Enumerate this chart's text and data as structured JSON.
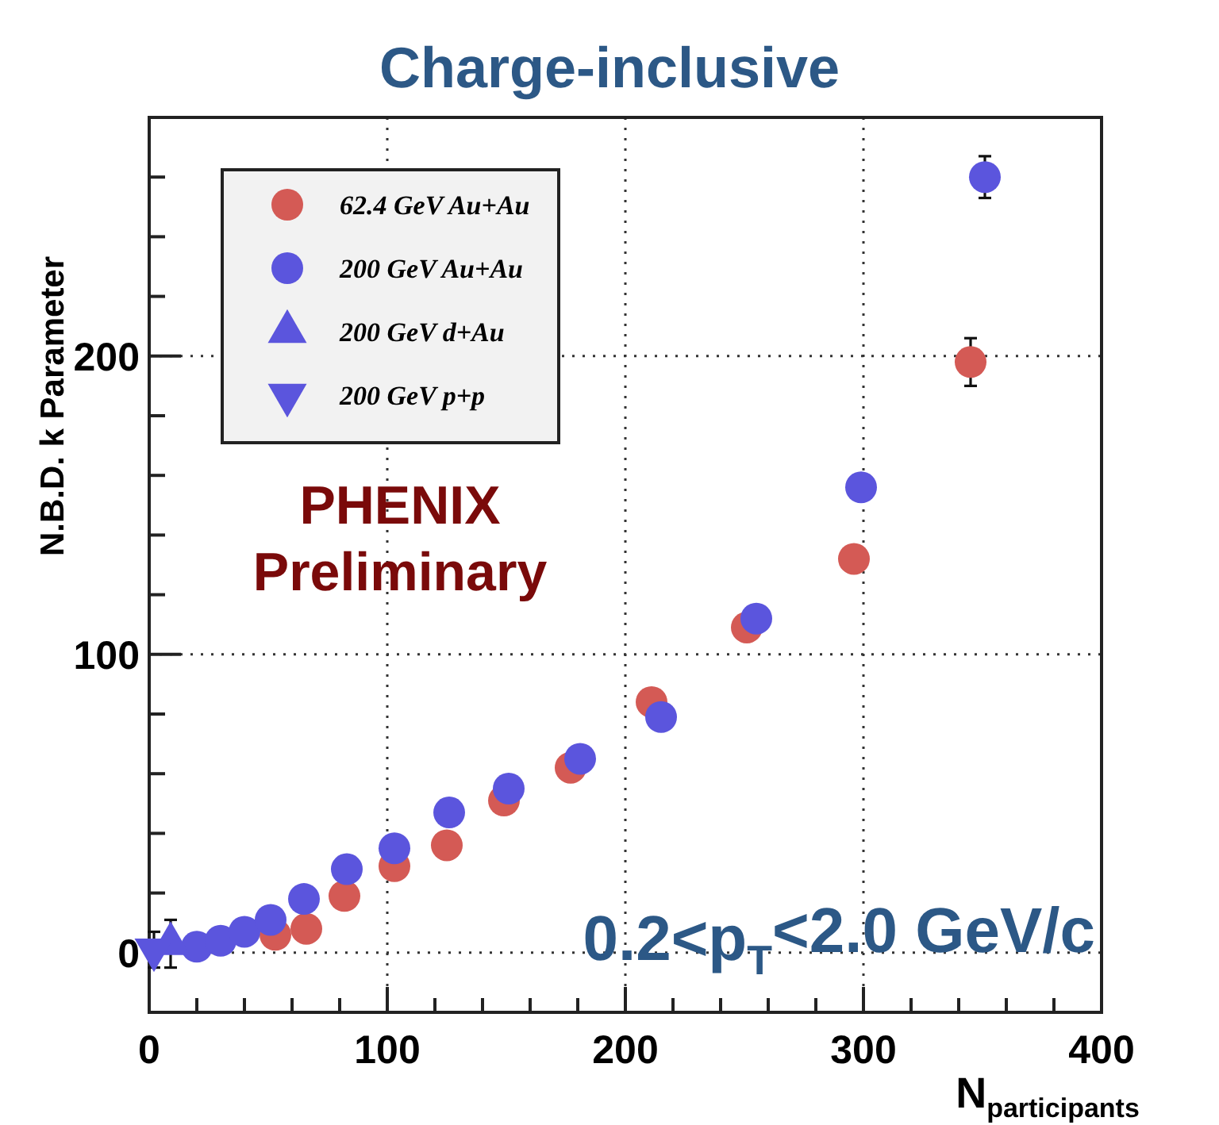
{
  "chart_data": {
    "type": "scatter",
    "title": "Charge-inclusive",
    "xlabel": "N$_{participants}$",
    "ylabel": "N.B.D. k Parameter",
    "xlim": [
      0,
      400
    ],
    "ylim": [
      -20,
      280
    ],
    "xticks": [
      0,
      {
        "value": 20,
        "label": null
      },
      {
        "value": 40,
        "label": null
      },
      {
        "value": 60,
        "label": null
      },
      {
        "value": 80,
        "label": null
      },
      100,
      {
        "value": 120,
        "label": null
      },
      {
        "value": 140,
        "label": null
      },
      {
        "value": 160,
        "label": null
      },
      {
        "value": 180,
        "label": null
      },
      200,
      {
        "value": 220,
        "label": null
      },
      {
        "value": 240,
        "label": null
      },
      {
        "value": 260,
        "label": null
      },
      {
        "value": 280,
        "label": null
      },
      300,
      {
        "value": 320,
        "label": null
      },
      {
        "value": 340,
        "label": null
      },
      {
        "value": 360,
        "label": null
      },
      {
        "value": 380,
        "label": null
      },
      400
    ],
    "yticks": [
      0,
      {
        "value": 20,
        "label": null
      },
      {
        "value": 40,
        "label": null
      },
      {
        "value": 60,
        "label": null
      },
      {
        "value": 80,
        "label": null
      },
      100,
      {
        "value": 120,
        "label": null
      },
      {
        "value": 140,
        "label": null
      },
      {
        "value": 160,
        "label": null
      },
      {
        "value": 180,
        "label": null
      },
      200,
      {
        "value": 220,
        "label": null
      },
      {
        "value": 240,
        "label": null
      },
      {
        "value": 260,
        "label": null
      }
    ],
    "grid": true,
    "legend": "top left",
    "series": [
      {
        "name": "62.4 GeV Au+Au",
        "color": "#d45a55",
        "marker": "circle",
        "x": [
          53,
          66,
          82,
          103,
          125,
          149,
          177,
          211,
          251,
          296,
          345
        ],
        "values": [
          6,
          8,
          19,
          29,
          36,
          51,
          62,
          84,
          109,
          132,
          198
        ],
        "errors": [
          null,
          null,
          null,
          null,
          null,
          null,
          null,
          null,
          null,
          null,
          8
        ]
      },
      {
        "name": "200 GeV Au+Au",
        "color": "#5b55dd",
        "marker": "circle",
        "x": [
          20,
          30,
          40,
          51,
          65,
          83,
          103,
          126,
          151,
          181,
          215,
          255,
          299,
          351
        ],
        "values": [
          2,
          4,
          7,
          11,
          18,
          28,
          35,
          47,
          55,
          65,
          79,
          112,
          156,
          260
        ],
        "errors": [
          null,
          null,
          null,
          null,
          null,
          null,
          null,
          null,
          null,
          null,
          null,
          null,
          null,
          7
        ]
      },
      {
        "name": "200 GeV d+Au",
        "color": "#5b55dd",
        "marker": "triangle",
        "x": [
          9
        ],
        "values": [
          3
        ],
        "errors": [
          8
        ]
      },
      {
        "name": "200 GeV p+p",
        "color": "#5b55dd",
        "marker": "triangle-down",
        "x": [
          2
        ],
        "values": [
          1
        ],
        "errors": [
          6
        ]
      }
    ],
    "annotations": [
      "PHENIX\nPreliminary",
      "0.2<p$_{T}$<2.0 GeV/c"
    ]
  }
}
